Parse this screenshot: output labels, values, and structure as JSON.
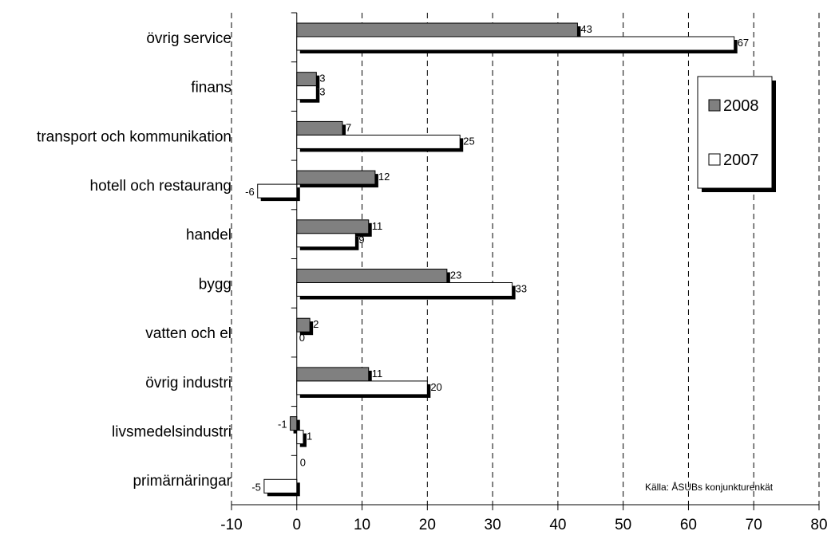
{
  "chart_data": {
    "type": "bar",
    "orientation": "horizontal",
    "categories": [
      "övrig service",
      "finans",
      "transport och kommunikation",
      "hotell och restaurang",
      "handel",
      "bygg",
      "vatten och el",
      "övrig industri",
      "livsmedelsindustri",
      "primärnäringar"
    ],
    "series": [
      {
        "name": "2008",
        "values": [
          43,
          3,
          7,
          12,
          11,
          23,
          2,
          11,
          -1,
          0
        ],
        "color": "#808080"
      },
      {
        "name": "2007",
        "values": [
          67,
          3,
          25,
          -6,
          9,
          33,
          0,
          20,
          1,
          -5
        ],
        "color": "#ffffff"
      }
    ],
    "xlim": [
      -10,
      80
    ],
    "xticks": [
      "-10",
      "0",
      "10",
      "20",
      "30",
      "40",
      "50",
      "60",
      "70",
      "80"
    ],
    "grid": "vertical-dashed",
    "legend_position": "top-right",
    "annotation": "Källa: ÅSUBs konjunkturenkät"
  }
}
